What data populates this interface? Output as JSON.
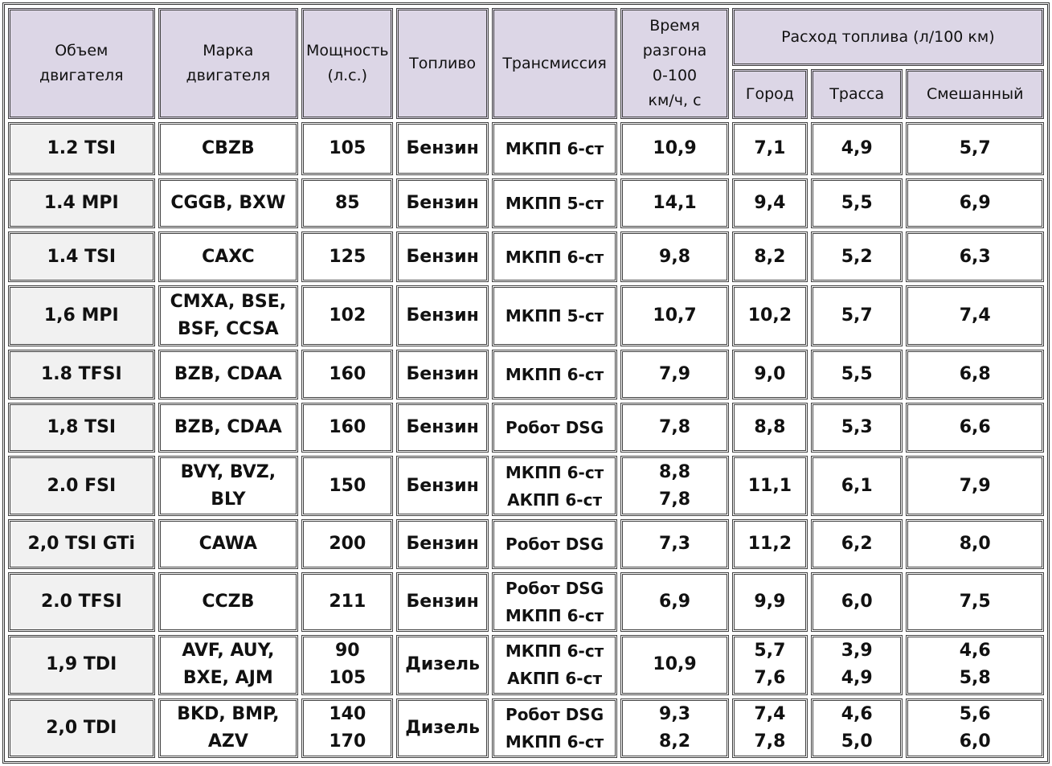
{
  "header": {
    "volume": [
      "Объем",
      "двигателя"
    ],
    "brand": [
      "Марка",
      "двигателя"
    ],
    "power": [
      "Мощность",
      "(л.с.)"
    ],
    "fuel": [
      "Топливо"
    ],
    "transmission": [
      "Трансмиссия"
    ],
    "acceleration": [
      "Время",
      "разгона",
      "0-100",
      "км/ч, с"
    ],
    "consumption": [
      "Расход топлива (л/100 км)"
    ],
    "city": [
      "Город"
    ],
    "highway": [
      "Трасса"
    ],
    "mixed": [
      "Смешанный"
    ]
  },
  "rows": [
    {
      "volume": [
        "1.2 TSI"
      ],
      "brand": [
        "CBZB"
      ],
      "power": [
        "105"
      ],
      "fuel": [
        "Бензин"
      ],
      "transmission": [
        "МКПП 6-ст"
      ],
      "acceleration": [
        "10,9"
      ],
      "city": [
        "7,1"
      ],
      "highway": [
        "4,9"
      ],
      "mixed": [
        "5,7"
      ]
    },
    {
      "volume": [
        "1.4 MPI"
      ],
      "brand": [
        "CGGB, BXW"
      ],
      "power": [
        "85"
      ],
      "fuel": [
        "Бензин"
      ],
      "transmission": [
        "МКПП 5-ст"
      ],
      "acceleration": [
        "14,1"
      ],
      "city": [
        "9,4"
      ],
      "highway": [
        "5,5"
      ],
      "mixed": [
        "6,9"
      ]
    },
    {
      "volume": [
        "1.4 TSI"
      ],
      "brand": [
        "CAXC"
      ],
      "power": [
        "125"
      ],
      "fuel": [
        "Бензин"
      ],
      "transmission": [
        "МКПП 6-ст"
      ],
      "acceleration": [
        "9,8"
      ],
      "city": [
        "8,2"
      ],
      "highway": [
        "5,2"
      ],
      "mixed": [
        "6,3"
      ]
    },
    {
      "volume": [
        "1,6 MPI"
      ],
      "brand": [
        "CMXA, BSE,",
        "BSF, CCSA"
      ],
      "power": [
        "102"
      ],
      "fuel": [
        "Бензин"
      ],
      "transmission": [
        "МКПП 5-ст"
      ],
      "acceleration": [
        "10,7"
      ],
      "city": [
        "10,2"
      ],
      "highway": [
        "5,7"
      ],
      "mixed": [
        "7,4"
      ]
    },
    {
      "volume": [
        "1.8 TFSI"
      ],
      "brand": [
        "BZB, CDAA"
      ],
      "power": [
        "160"
      ],
      "fuel": [
        "Бензин"
      ],
      "transmission": [
        "МКПП 6-ст"
      ],
      "acceleration": [
        "7,9"
      ],
      "city": [
        "9,0"
      ],
      "highway": [
        "5,5"
      ],
      "mixed": [
        "6,8"
      ]
    },
    {
      "volume": [
        "1,8 TSI"
      ],
      "brand": [
        "BZB, CDAA"
      ],
      "power": [
        "160"
      ],
      "fuel": [
        "Бензин"
      ],
      "transmission": [
        "Робот DSG"
      ],
      "acceleration": [
        "7,8"
      ],
      "city": [
        "8,8"
      ],
      "highway": [
        "5,3"
      ],
      "mixed": [
        "6,6"
      ]
    },
    {
      "volume": [
        "2.0 FSI"
      ],
      "brand": [
        "BVY, BVZ,",
        "BLY"
      ],
      "power": [
        "150"
      ],
      "fuel": [
        "Бензин"
      ],
      "transmission": [
        "МКПП 6-ст",
        "АКПП 6-ст"
      ],
      "acceleration": [
        "8,8",
        "7,8"
      ],
      "city": [
        "11,1"
      ],
      "highway": [
        "6,1"
      ],
      "mixed": [
        "7,9"
      ]
    },
    {
      "volume": [
        "2,0 TSI GTi"
      ],
      "brand": [
        "CAWA"
      ],
      "power": [
        "200"
      ],
      "fuel": [
        "Бензин"
      ],
      "transmission": [
        "Робот DSG"
      ],
      "acceleration": [
        "7,3"
      ],
      "city": [
        "11,2"
      ],
      "highway": [
        "6,2"
      ],
      "mixed": [
        "8,0"
      ]
    },
    {
      "volume": [
        "2.0 TFSI"
      ],
      "brand": [
        "CCZB"
      ],
      "power": [
        "211"
      ],
      "fuel": [
        "Бензин"
      ],
      "transmission": [
        "Робот DSG",
        "МКПП 6-ст"
      ],
      "acceleration": [
        "6,9"
      ],
      "city": [
        "9,9"
      ],
      "highway": [
        "6,0"
      ],
      "mixed": [
        "7,5"
      ]
    },
    {
      "volume": [
        "1,9 TDI"
      ],
      "brand": [
        "AVF, AUY,",
        "BXE, AJM"
      ],
      "power": [
        "90",
        "105"
      ],
      "fuel": [
        "Дизель"
      ],
      "transmission": [
        "МКПП 6-ст",
        "АКПП 6-ст"
      ],
      "acceleration": [
        "10,9"
      ],
      "city": [
        "5,7",
        "7,6"
      ],
      "highway": [
        "3,9",
        "4,9"
      ],
      "mixed": [
        "4,6",
        "5,8"
      ]
    },
    {
      "volume": [
        "2,0 TDI"
      ],
      "brand": [
        "BKD, BMP,",
        "AZV"
      ],
      "power": [
        "140",
        "170"
      ],
      "fuel": [
        "Дизель"
      ],
      "transmission": [
        "Робот DSG",
        "МКПП 6-ст"
      ],
      "acceleration": [
        "9,3",
        "8,2"
      ],
      "city": [
        "7,4",
        "7,8"
      ],
      "highway": [
        "4,6",
        "5,0"
      ],
      "mixed": [
        "5,6",
        "6,0"
      ]
    }
  ]
}
